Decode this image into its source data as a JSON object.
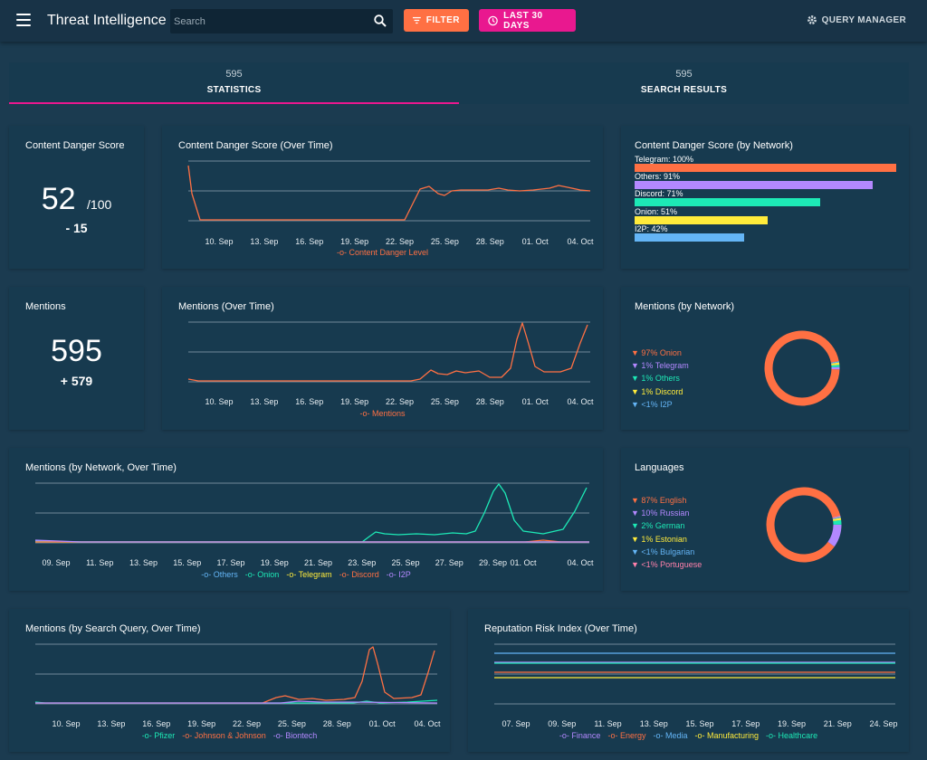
{
  "header": {
    "title": "Threat Intelligence",
    "search_placeholder": "Search",
    "filter_label": "FILTER",
    "range_label": "LAST 30 DAYS",
    "query_manager_label": "QUERY MANAGER"
  },
  "tabs": [
    {
      "count": "595",
      "label": "STATISTICS"
    },
    {
      "count": "595",
      "label": "SEARCH RESULTS"
    }
  ],
  "colors": {
    "orange": "#ff7043",
    "purple": "#b388ff",
    "green": "#1de9b6",
    "yellow": "#ffeb3b",
    "blue": "#64b5f6",
    "pink": "#ff80ab",
    "magenta": "#e9188f",
    "grid": "#8fa3b0"
  },
  "danger_score": {
    "title": "Content Danger Score",
    "value": "52",
    "max": "/100",
    "delta": "- 15"
  },
  "danger_over_time": {
    "title": "Content Danger Score (Over Time)",
    "ticks": [
      "10. Sep",
      "13. Sep",
      "16. Sep",
      "19. Sep",
      "22. Sep",
      "25. Sep",
      "28. Sep",
      "01. Oct",
      "04. Oct"
    ],
    "legend": "Content Danger Level"
  },
  "danger_by_network": {
    "title": "Content Danger Score (by Network)",
    "bars": [
      {
        "label": "Telegram: 100%",
        "value": 100,
        "color": "#ff7043"
      },
      {
        "label": "Others: 91%",
        "value": 91,
        "color": "#b388ff"
      },
      {
        "label": "Discord: 71%",
        "value": 71,
        "color": "#1de9b6"
      },
      {
        "label": "Onion: 51%",
        "value": 51,
        "color": "#ffeb3b"
      },
      {
        "label": "I2P: 42%",
        "value": 42,
        "color": "#64b5f6"
      }
    ]
  },
  "mentions": {
    "title": "Mentions",
    "value": "595",
    "delta": "+ 579"
  },
  "mentions_over_time": {
    "title": "Mentions (Over Time)",
    "ticks": [
      "10. Sep",
      "13. Sep",
      "16. Sep",
      "19. Sep",
      "22. Sep",
      "25. Sep",
      "28. Sep",
      "01. Oct",
      "04. Oct"
    ],
    "legend": "Mentions"
  },
  "mentions_by_network": {
    "title": "Mentions (by Network)",
    "items": [
      {
        "label": "97% Onion",
        "value": 97,
        "color": "#ff7043"
      },
      {
        "label": "1% Telegram",
        "value": 1,
        "color": "#b388ff"
      },
      {
        "label": "1% Others",
        "value": 1,
        "color": "#1de9b6"
      },
      {
        "label": "1% Discord",
        "value": 1,
        "color": "#ffeb3b"
      },
      {
        "label": "<1% I2P",
        "value": 0.5,
        "color": "#64b5f6"
      }
    ]
  },
  "mentions_network_time": {
    "title": "Mentions (by Network, Over Time)",
    "ticks": [
      "09. Sep",
      "11. Sep",
      "13. Sep",
      "15. Sep",
      "17. Sep",
      "19. Sep",
      "21. Sep",
      "23. Sep",
      "25. Sep",
      "27. Sep",
      "29. Sep",
      "01. Oct",
      "04. Oct"
    ],
    "legend": [
      {
        "label": "Others",
        "color": "#64b5f6"
      },
      {
        "label": "Onion",
        "color": "#1de9b6"
      },
      {
        "label": "Telegram",
        "color": "#ffeb3b"
      },
      {
        "label": "Discord",
        "color": "#ff7043"
      },
      {
        "label": "I2P",
        "color": "#b388ff"
      }
    ]
  },
  "languages": {
    "title": "Languages",
    "items": [
      {
        "label": "87% English",
        "value": 87,
        "color": "#ff7043"
      },
      {
        "label": "10% Russian",
        "value": 10,
        "color": "#b388ff"
      },
      {
        "label": "2% German",
        "value": 2,
        "color": "#1de9b6"
      },
      {
        "label": "1% Estonian",
        "value": 1,
        "color": "#ffeb3b"
      },
      {
        "label": "<1% Bulgarian",
        "value": 0.5,
        "color": "#64b5f6"
      },
      {
        "label": "<1% Portuguese",
        "value": 0.5,
        "color": "#ff80ab"
      }
    ]
  },
  "search_query_time": {
    "title": "Mentions (by Search Query, Over Time)",
    "ticks": [
      "10. Sep",
      "13. Sep",
      "16. Sep",
      "19. Sep",
      "22. Sep",
      "25. Sep",
      "28. Sep",
      "01. Oct",
      "04. Oct"
    ],
    "legend": [
      {
        "label": "Pfizer",
        "color": "#1de9b6"
      },
      {
        "label": "Johnson & Johnson",
        "color": "#ff7043"
      },
      {
        "label": "Biontech",
        "color": "#b388ff"
      }
    ]
  },
  "reputation": {
    "title": "Reputation Risk Index (Over Time)",
    "ticks": [
      "07. Sep",
      "09. Sep",
      "11. Sep",
      "13. Sep",
      "15. Sep",
      "17. Sep",
      "19. Sep",
      "21. Sep",
      "24. Sep"
    ],
    "legend": [
      {
        "label": "Finance",
        "color": "#b388ff"
      },
      {
        "label": "Energy",
        "color": "#ff7043"
      },
      {
        "label": "Media",
        "color": "#64b5f6"
      },
      {
        "label": "Manufacturing",
        "color": "#ffeb3b"
      },
      {
        "label": "Healthcare",
        "color": "#1de9b6"
      }
    ]
  }
}
